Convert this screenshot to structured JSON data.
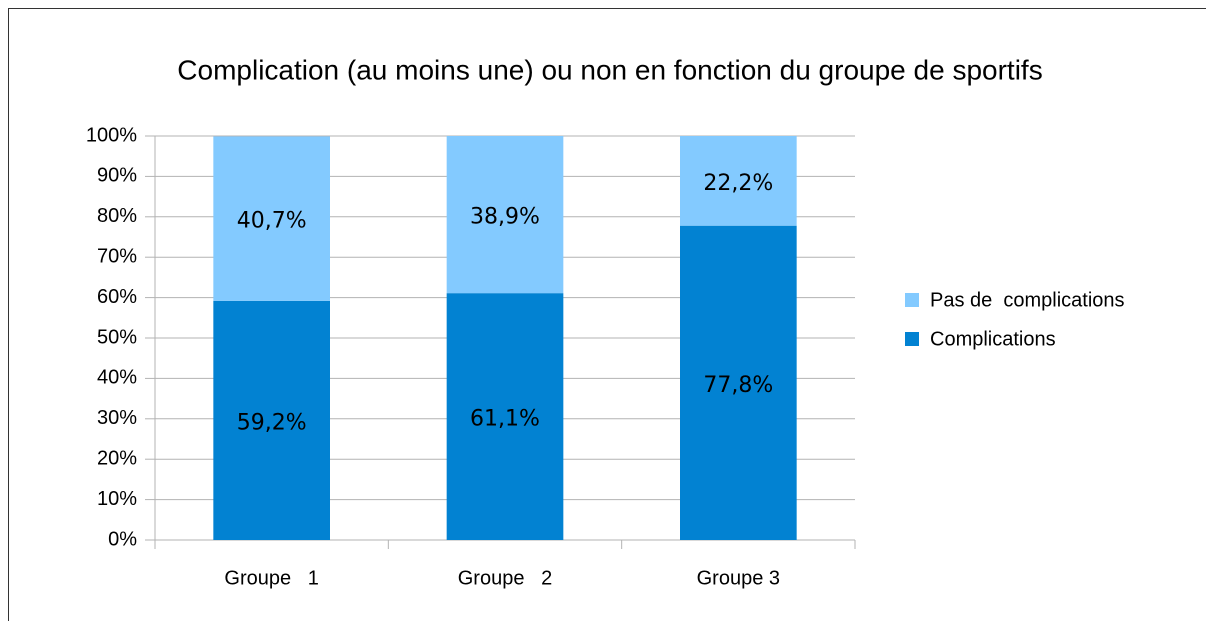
{
  "chart_data": {
    "type": "stacked_bar",
    "title": "Complication (au moins une) ou non en fonction du groupe de sportifs",
    "categories": [
      "Groupe   1",
      "Groupe   2",
      "Groupe 3"
    ],
    "series": [
      {
        "name": "Complications",
        "color": "#0282d2",
        "values": [
          59.2,
          61.1,
          77.8
        ],
        "value_labels": [
          "59,2%",
          "61,1%",
          "77,8%"
        ]
      },
      {
        "name": "Pas de  complications",
        "color": "#83caff",
        "values": [
          40.7,
          38.9,
          22.2
        ],
        "value_labels": [
          "40,7%",
          "38,9%",
          "22,2%"
        ]
      }
    ],
    "ylim": [
      0,
      100
    ],
    "yticks": [
      {
        "value": 0,
        "label": "0%"
      },
      {
        "value": 10,
        "label": "10%"
      },
      {
        "value": 20,
        "label": "20%"
      },
      {
        "value": 30,
        "label": "30%"
      },
      {
        "value": 40,
        "label": "40%"
      },
      {
        "value": 50,
        "label": "50%"
      },
      {
        "value": 60,
        "label": "60%"
      },
      {
        "value": 70,
        "label": "70%"
      },
      {
        "value": 80,
        "label": "80%"
      },
      {
        "value": 90,
        "label": "90%"
      },
      {
        "value": 100,
        "label": "100%"
      }
    ],
    "grid": true,
    "legend": "right"
  }
}
